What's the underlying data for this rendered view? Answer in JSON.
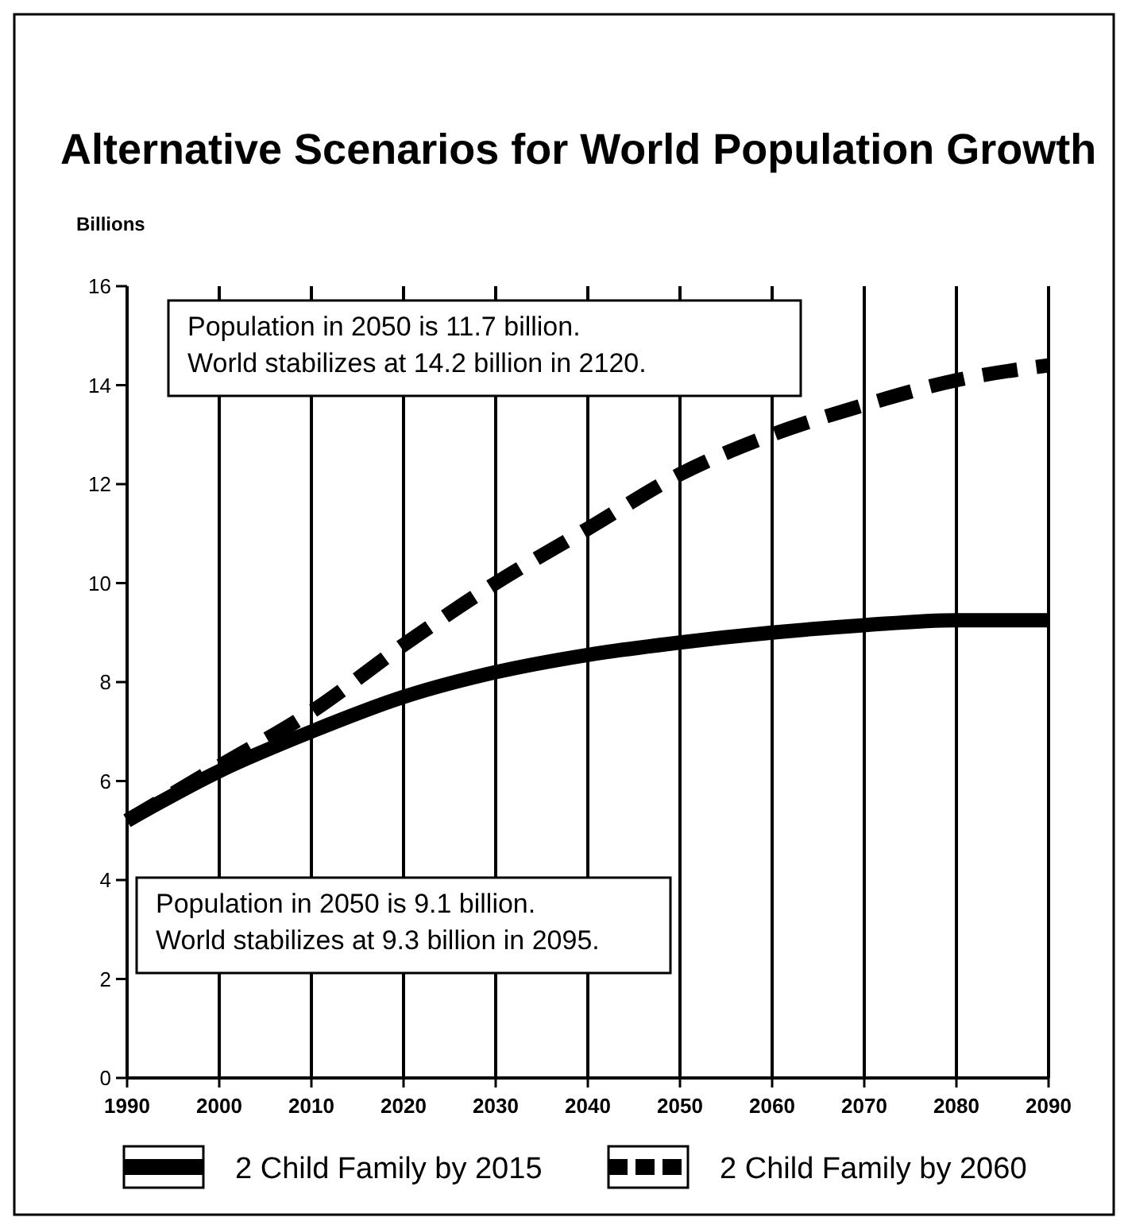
{
  "chart_data": {
    "type": "line",
    "title": "Alternative Scenarios for World Population Growth",
    "ylabel": "Billions",
    "x": [
      1990,
      2000,
      2010,
      2020,
      2030,
      2040,
      2050,
      2060,
      2070,
      2080,
      2090
    ],
    "series": [
      {
        "name": "2 Child Family by 2015",
        "color": "#000000",
        "line_style": "solid",
        "values": [
          5.2,
          6.2,
          7.0,
          7.7,
          8.2,
          8.55,
          8.8,
          9.0,
          9.15,
          9.25,
          9.25
        ]
      },
      {
        "name": "2 Child Family by 2060",
        "color": "#000000",
        "line_style": "dashed",
        "values": [
          5.2,
          6.3,
          7.4,
          8.75,
          10.0,
          11.1,
          12.2,
          13.0,
          13.6,
          14.1,
          14.4
        ]
      }
    ],
    "xlim": [
      1990,
      2090
    ],
    "xticks": [
      1990,
      2000,
      2010,
      2020,
      2030,
      2040,
      2050,
      2060,
      2070,
      2080,
      2090
    ],
    "ylim": [
      0,
      16
    ],
    "yticks": [
      0,
      2,
      4,
      6,
      8,
      10,
      12,
      14,
      16
    ],
    "grid": "x",
    "legend": "bottom",
    "marker": "none",
    "annotations": [
      "Population in 2050 is 11.7 billion.\nWorld stabilizes at 14.2 billion in 2120.",
      "Population in 2050 is 9.1 billion.\nWorld stabilizes at 9.3 billion in 2095."
    ]
  }
}
